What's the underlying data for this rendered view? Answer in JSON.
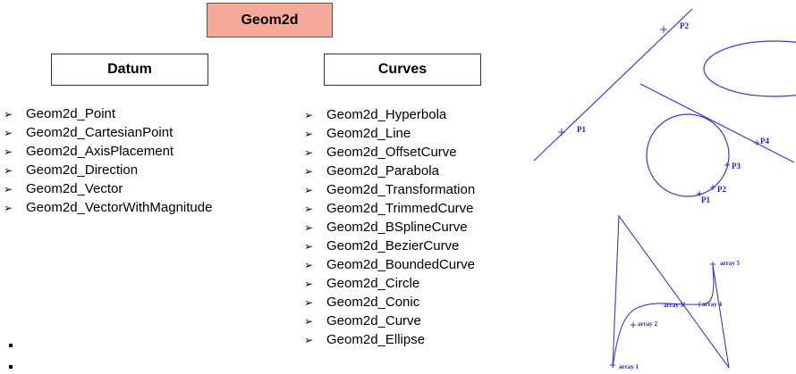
{
  "title": "Geom2d",
  "datum": {
    "heading": "Datum",
    "items": [
      "Geom2d_Point",
      "Geom2d_CartesianPoint",
      "Geom2d_AxisPlacement",
      "Geom2d_Direction",
      "Geom2d_Vector",
      "Geom2d_VectorWithMagnitude"
    ]
  },
  "curves": {
    "heading": "Curves",
    "items": [
      "Geom2d_Hyperbola",
      "Geom2d_Line",
      "Geom2d_OffsetCurve",
      "Geom2d_Parabola",
      "Geom2d_Transformation",
      "Geom2d_TrimmedCurve",
      "Geom2d_BSplineCurve",
      "Geom2d_BezierCurve",
      "Geom2d_BoundedCurve",
      "Geom2d_Circle",
      "Geom2d_Conic",
      "Geom2d_Curve",
      "Geom2d_Ellipse"
    ]
  },
  "arrow_icon": "arrowhead-bullet-icon",
  "colors": {
    "title_fill": "#f4a999",
    "diagram_line": "#3a3ad0",
    "diagram_label": "#1c1ccc"
  },
  "diagram_labels": {
    "line_points": [
      "P1",
      "P2"
    ],
    "circle_points": [
      "P1",
      "P2",
      "P3",
      "P4"
    ],
    "bspline_points": [
      "array 1",
      "array 2",
      "array 3",
      "array 4",
      "array 5"
    ]
  }
}
